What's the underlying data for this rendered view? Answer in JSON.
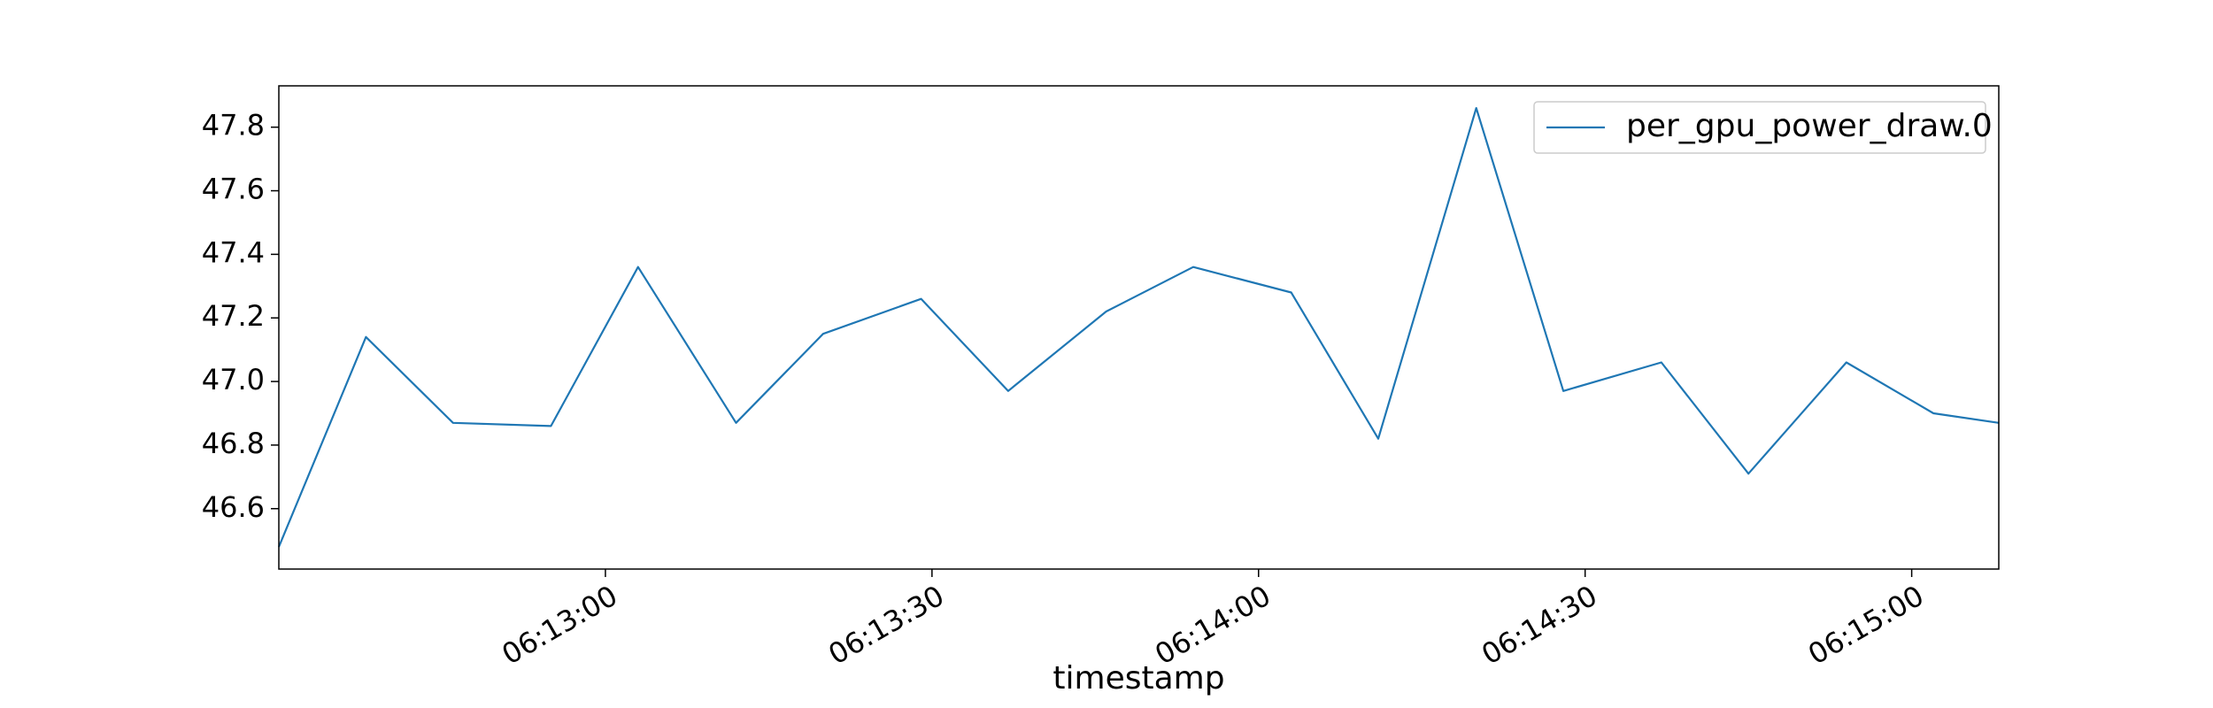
{
  "chart_data": {
    "type": "line",
    "title": "",
    "xlabel": "timestamp",
    "ylabel": "",
    "x": [
      "06:12:30",
      "06:12:38",
      "06:12:46",
      "06:12:55",
      "06:13:03",
      "06:13:12",
      "06:13:20",
      "06:13:29",
      "06:13:37",
      "06:13:46",
      "06:13:54",
      "06:14:03",
      "06:14:11",
      "06:14:20",
      "06:14:28",
      "06:14:37",
      "06:14:45",
      "06:14:54",
      "06:15:02",
      "06:15:08"
    ],
    "series": [
      {
        "name": "per_gpu_power_draw.0",
        "color": "#1f77b4",
        "values": [
          46.48,
          47.14,
          46.87,
          46.86,
          47.36,
          46.87,
          47.15,
          47.26,
          46.97,
          47.22,
          47.36,
          47.28,
          46.82,
          47.86,
          46.97,
          47.06,
          46.71,
          47.06,
          46.9,
          46.87
        ]
      }
    ],
    "xlim": [
      "06:12:30",
      "06:15:08"
    ],
    "ylim": [
      46.41,
      47.93
    ],
    "x_ticks": [
      "06:13:00",
      "06:13:30",
      "06:14:00",
      "06:14:30",
      "06:15:00"
    ],
    "y_ticks": [
      "46.6",
      "46.8",
      "47.0",
      "47.2",
      "47.4",
      "47.6",
      "47.8"
    ],
    "grid": false,
    "legend_position": "upper right"
  }
}
